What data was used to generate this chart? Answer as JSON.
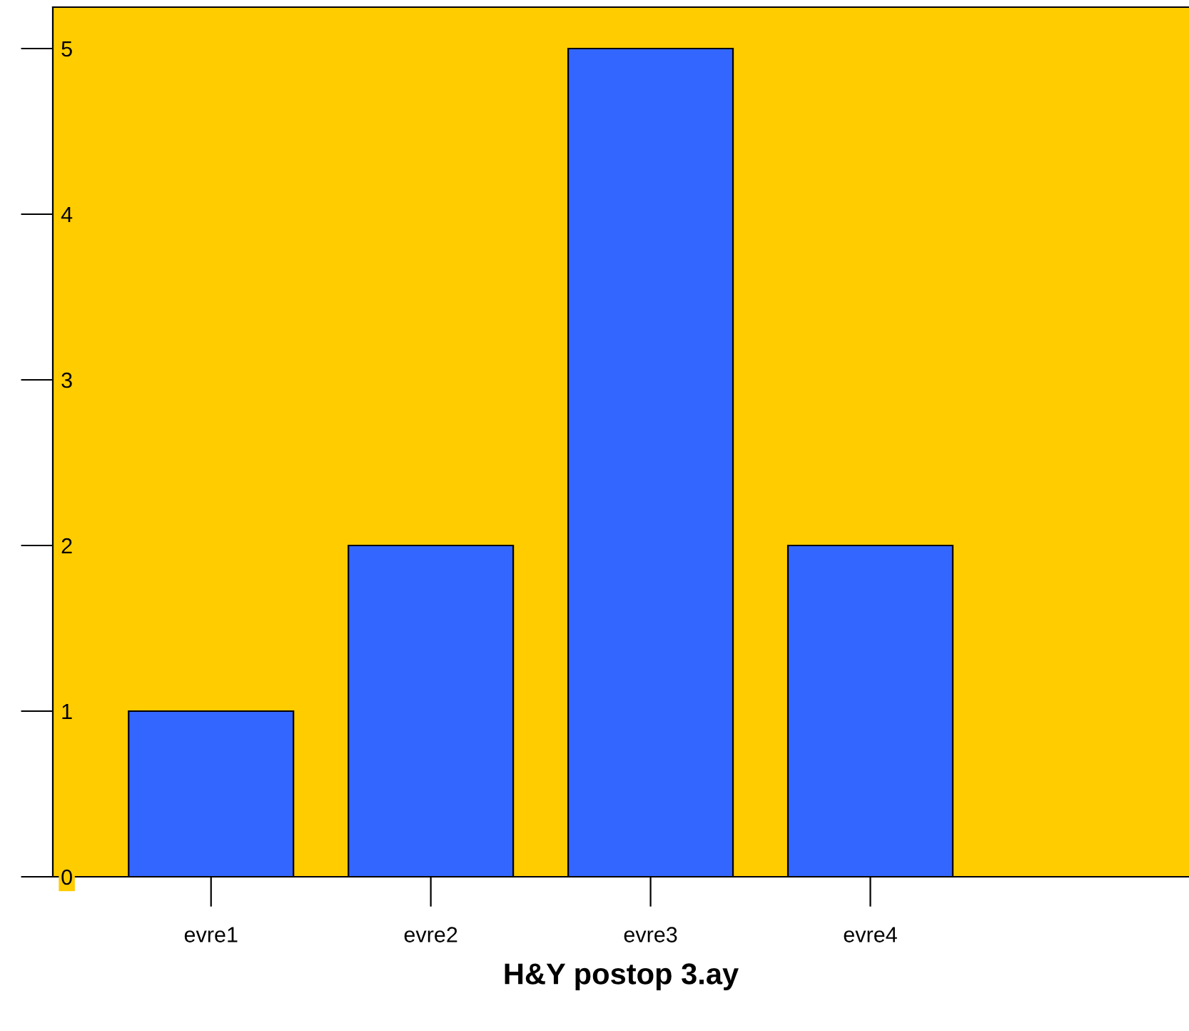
{
  "chart_data": {
    "type": "bar",
    "xlabel": "H&Y postop 3.ay",
    "categories": [
      "evre1",
      "evre2",
      "evre3",
      "evre4"
    ],
    "values": [
      1,
      2,
      5,
      2
    ],
    "color": "#3366ff",
    "ylim": [
      0,
      5.25
    ],
    "yticks": [
      0,
      1,
      2,
      3,
      4,
      5
    ],
    "grid": false,
    "legend": false
  }
}
